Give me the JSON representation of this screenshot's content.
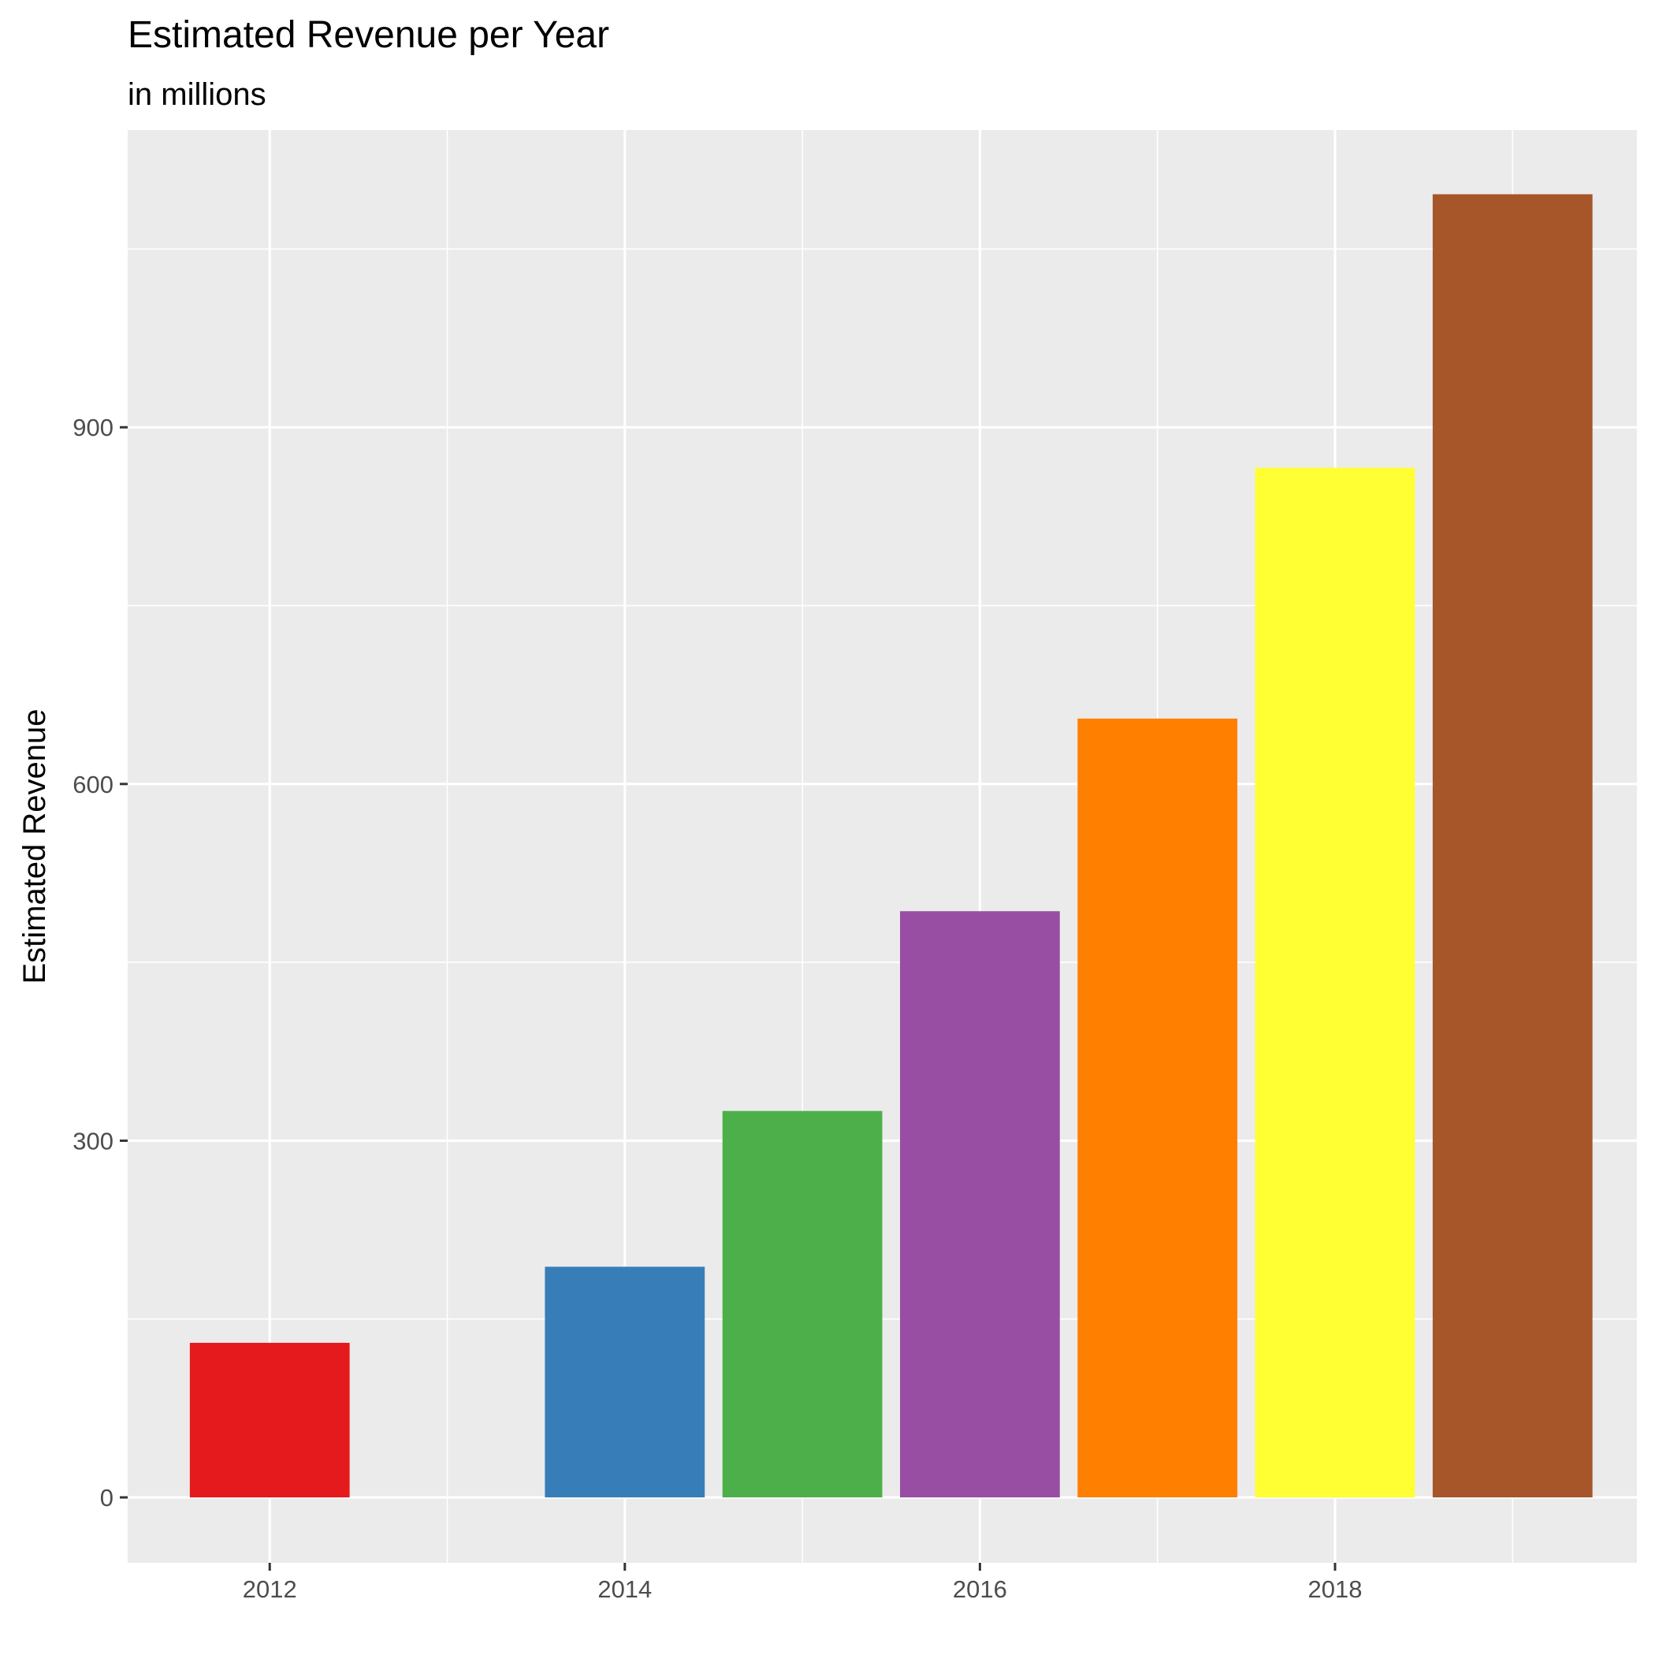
{
  "chart_data": {
    "type": "bar",
    "title": "Estimated Revenue per Year",
    "subtitle": "in millions",
    "xlabel": "",
    "ylabel": "Estimated Revenue",
    "x": [
      2012,
      2014,
      2015,
      2016,
      2017,
      2018,
      2019
    ],
    "values": [
      130,
      194,
      325,
      493,
      655,
      866,
      1096
    ],
    "colors": [
      "#E41A1C",
      "#377EB8",
      "#4DAF4A",
      "#984EA3",
      "#FF7F00",
      "#FFFF33",
      "#A65628"
    ],
    "xlim": [
      2011.2,
      2019.7
    ],
    "ylim": [
      -55,
      1150
    ],
    "xticks": [
      2012,
      2014,
      2016,
      2018
    ],
    "xtick_labels": [
      "2012",
      "2014",
      "2016",
      "2018"
    ],
    "yticks": [
      0,
      300,
      600,
      900
    ],
    "ytick_labels": [
      "0",
      "300",
      "600",
      "900"
    ],
    "grid": true,
    "legend": "none",
    "panel_color": "#EBEBEB",
    "grid_color": "#FFFFFF"
  }
}
